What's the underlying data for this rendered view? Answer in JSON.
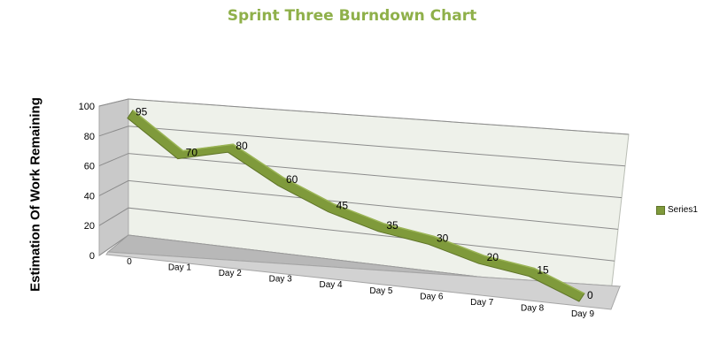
{
  "chart_data": {
    "type": "line",
    "title": "Sprint Three Burndown Chart",
    "xlabel": "",
    "ylabel": "Estimation Of Work Remaining",
    "categories": [
      "0",
      "Day 1",
      "Day 2",
      "Day 3",
      "Day 4",
      "Day 5",
      "Day 6",
      "Day 7",
      "Day 8",
      "Day 9"
    ],
    "series": [
      {
        "name": "Series1",
        "values": [
          95,
          70,
          80,
          60,
          45,
          35,
          30,
          20,
          15,
          0
        ]
      }
    ],
    "ylim": [
      0,
      100
    ],
    "yticks": [
      0,
      20,
      40,
      60,
      80,
      100
    ],
    "grid": true,
    "three_d": true,
    "data_labels": true,
    "legend_position": "right",
    "colors": {
      "title": "#8fb04a",
      "series": "#7f9a3b",
      "series_edge": "#5f7428",
      "wall_left": "#c9c9c9",
      "wall_back": "#eef1ea",
      "floor": "#b8b8b8",
      "gridline": "#8c8c8c"
    }
  }
}
